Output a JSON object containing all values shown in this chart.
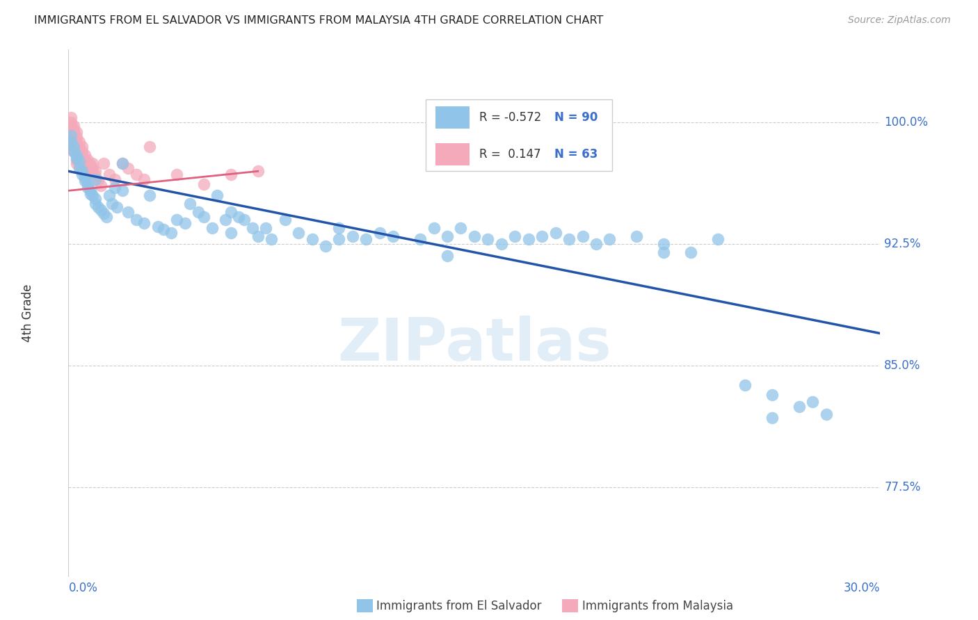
{
  "title": "IMMIGRANTS FROM EL SALVADOR VS IMMIGRANTS FROM MALAYSIA 4TH GRADE CORRELATION CHART",
  "source": "Source: ZipAtlas.com",
  "ylabel": "4th Grade",
  "ytick_labels": [
    "100.0%",
    "92.5%",
    "85.0%",
    "77.5%"
  ],
  "ytick_values": [
    1.0,
    0.925,
    0.85,
    0.775
  ],
  "xmin": 0.0,
  "xmax": 0.3,
  "ymin": 0.72,
  "ymax": 1.045,
  "legend_R_blue": "R = -0.572",
  "legend_N_blue": "N = 90",
  "legend_R_pink": "R =  0.147",
  "legend_N_pink": "N = 63",
  "blue_color": "#90C4E8",
  "pink_color": "#F4AABB",
  "blue_line_color": "#2255AA",
  "pink_line_color": "#E06080",
  "blue_text_color": "#3B6FCC",
  "legend_label_blue": "Immigrants from El Salvador",
  "legend_label_pink": "Immigrants from Malaysia",
  "watermark_text": "ZIPatlas",
  "blue_scatter_x": [
    0.001,
    0.001,
    0.002,
    0.002,
    0.003,
    0.003,
    0.004,
    0.004,
    0.005,
    0.005,
    0.006,
    0.006,
    0.007,
    0.007,
    0.008,
    0.008,
    0.009,
    0.01,
    0.01,
    0.011,
    0.012,
    0.013,
    0.014,
    0.015,
    0.016,
    0.017,
    0.018,
    0.02,
    0.022,
    0.025,
    0.028,
    0.03,
    0.033,
    0.035,
    0.038,
    0.04,
    0.043,
    0.045,
    0.048,
    0.05,
    0.053,
    0.055,
    0.058,
    0.06,
    0.063,
    0.065,
    0.068,
    0.07,
    0.073,
    0.075,
    0.08,
    0.085,
    0.09,
    0.095,
    0.1,
    0.105,
    0.11,
    0.115,
    0.12,
    0.13,
    0.135,
    0.14,
    0.145,
    0.15,
    0.155,
    0.16,
    0.165,
    0.17,
    0.175,
    0.18,
    0.185,
    0.19,
    0.195,
    0.2,
    0.21,
    0.22,
    0.23,
    0.24,
    0.25,
    0.26,
    0.27,
    0.275,
    0.28,
    0.01,
    0.02,
    0.06,
    0.1,
    0.14,
    0.22,
    0.26
  ],
  "blue_scatter_y": [
    0.992,
    0.988,
    0.985,
    0.982,
    0.98,
    0.978,
    0.976,
    0.972,
    0.97,
    0.968,
    0.966,
    0.964,
    0.962,
    0.96,
    0.958,
    0.956,
    0.955,
    0.953,
    0.95,
    0.948,
    0.946,
    0.944,
    0.942,
    0.955,
    0.95,
    0.96,
    0.948,
    0.975,
    0.945,
    0.94,
    0.938,
    0.955,
    0.936,
    0.934,
    0.932,
    0.94,
    0.938,
    0.95,
    0.945,
    0.942,
    0.935,
    0.955,
    0.94,
    0.945,
    0.942,
    0.94,
    0.935,
    0.93,
    0.935,
    0.928,
    0.94,
    0.932,
    0.928,
    0.924,
    0.935,
    0.93,
    0.928,
    0.932,
    0.93,
    0.928,
    0.935,
    0.93,
    0.935,
    0.93,
    0.928,
    0.925,
    0.93,
    0.928,
    0.93,
    0.932,
    0.928,
    0.93,
    0.925,
    0.928,
    0.93,
    0.925,
    0.92,
    0.928,
    0.838,
    0.832,
    0.825,
    0.828,
    0.82,
    0.965,
    0.958,
    0.932,
    0.928,
    0.918,
    0.92,
    0.818
  ],
  "pink_scatter_x": [
    0.001,
    0.001,
    0.001,
    0.001,
    0.001,
    0.001,
    0.001,
    0.001,
    0.001,
    0.001,
    0.002,
    0.002,
    0.002,
    0.002,
    0.002,
    0.002,
    0.002,
    0.002,
    0.003,
    0.003,
    0.003,
    0.003,
    0.003,
    0.003,
    0.003,
    0.003,
    0.004,
    0.004,
    0.004,
    0.004,
    0.004,
    0.004,
    0.005,
    0.005,
    0.005,
    0.005,
    0.005,
    0.006,
    0.006,
    0.006,
    0.007,
    0.007,
    0.007,
    0.008,
    0.008,
    0.009,
    0.009,
    0.01,
    0.01,
    0.011,
    0.012,
    0.013,
    0.015,
    0.017,
    0.02,
    0.022,
    0.025,
    0.028,
    0.03,
    0.04,
    0.05,
    0.06,
    0.07
  ],
  "pink_scatter_y": [
    1.003,
    1.0,
    0.998,
    0.996,
    0.994,
    0.992,
    0.99,
    0.988,
    0.986,
    0.984,
    0.998,
    0.996,
    0.994,
    0.992,
    0.99,
    0.988,
    0.985,
    0.982,
    0.994,
    0.991,
    0.988,
    0.985,
    0.982,
    0.979,
    0.977,
    0.975,
    0.988,
    0.985,
    0.982,
    0.979,
    0.976,
    0.973,
    0.985,
    0.982,
    0.979,
    0.976,
    0.973,
    0.98,
    0.977,
    0.974,
    0.977,
    0.974,
    0.971,
    0.974,
    0.971,
    0.975,
    0.972,
    0.97,
    0.967,
    0.964,
    0.961,
    0.975,
    0.968,
    0.965,
    0.975,
    0.972,
    0.968,
    0.965,
    0.985,
    0.968,
    0.962,
    0.968,
    0.97
  ]
}
